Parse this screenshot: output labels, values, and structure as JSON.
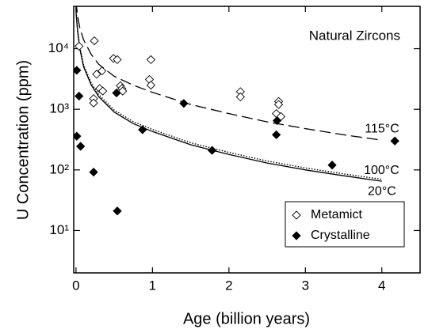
{
  "chart_data": {
    "type": "scatter",
    "annotation": "Natural Zircons",
    "x_label": "Age (billion years)",
    "y_label": "U Concentration (ppm)",
    "xlim": [
      -0.03,
      4.5
    ],
    "xticks": [
      0,
      1,
      2,
      3,
      4
    ],
    "ylim": [
      2,
      50000
    ],
    "yticks": [
      {
        "value": 10,
        "label": "10¹"
      },
      {
        "value": 100,
        "label": "10²"
      },
      {
        "value": 1000,
        "label": "10³"
      },
      {
        "value": 10000,
        "label": "10⁴"
      }
    ],
    "log_y": true,
    "legend": "lower right",
    "series": [
      {
        "name": "Metamict",
        "marker": "open-diamond",
        "color": "#000000",
        "x": [
          0.04,
          0.24,
          0.27,
          0.34,
          0.31,
          0.35,
          0.23,
          0.23,
          0.49,
          0.54,
          0.58,
          0.6,
          0.61,
          0.98,
          0.96,
          0.98,
          2.15,
          2.15,
          2.65,
          2.65,
          2.62,
          2.68
        ],
        "values": [
          11000,
          13500,
          3800,
          4300,
          2200,
          2000,
          1500,
          1270,
          6900,
          6600,
          2450,
          2200,
          2000,
          6600,
          3100,
          2500,
          1950,
          1600,
          1350,
          1200,
          850,
          760
        ]
      },
      {
        "name": "Crystalline",
        "marker": "filled-diamond",
        "color": "#000000",
        "x": [
          0.01,
          0.04,
          0.01,
          0.06,
          0.23,
          0.53,
          0.54,
          0.87,
          1.41,
          1.78,
          2.62,
          2.63,
          3.35,
          4.17
        ],
        "values": [
          4400,
          1650,
          360,
          245,
          92,
          1860,
          21,
          460,
          1250,
          210,
          380,
          650,
          120,
          300
        ]
      }
    ],
    "curves": [
      {
        "name": "115°C",
        "style": "dashed",
        "color": "#000000",
        "x": [
          0,
          0.02,
          0.05,
          0.1,
          0.2,
          0.3,
          0.5,
          0.75,
          1,
          1.5,
          2,
          2.5,
          3,
          3.5,
          4
        ],
        "values": [
          60000,
          35000,
          22000,
          14000,
          8000,
          5500,
          3500,
          2500,
          1900,
          1200,
          850,
          620,
          480,
          380,
          310
        ]
      },
      {
        "name": "100°C",
        "style": "dotted",
        "color": "#000000",
        "x": [
          0,
          0.02,
          0.05,
          0.1,
          0.2,
          0.3,
          0.5,
          0.75,
          1,
          1.5,
          2,
          2.5,
          3,
          3.5,
          4
        ],
        "values": [
          45000,
          21500,
          10800,
          5400,
          2700,
          1730,
          970,
          625,
          465,
          280,
          195,
          140,
          108,
          86,
          70
        ]
      },
      {
        "name": "20°C",
        "style": "solid",
        "color": "#000000",
        "x": [
          0,
          0.02,
          0.05,
          0.1,
          0.2,
          0.3,
          0.5,
          0.75,
          1,
          1.5,
          2,
          2.5,
          3,
          3.5,
          4
        ],
        "values": [
          40000,
          20000,
          10000,
          5000,
          2500,
          1600,
          900,
          580,
          430,
          260,
          180,
          130,
          100,
          80,
          65
        ]
      }
    ]
  }
}
